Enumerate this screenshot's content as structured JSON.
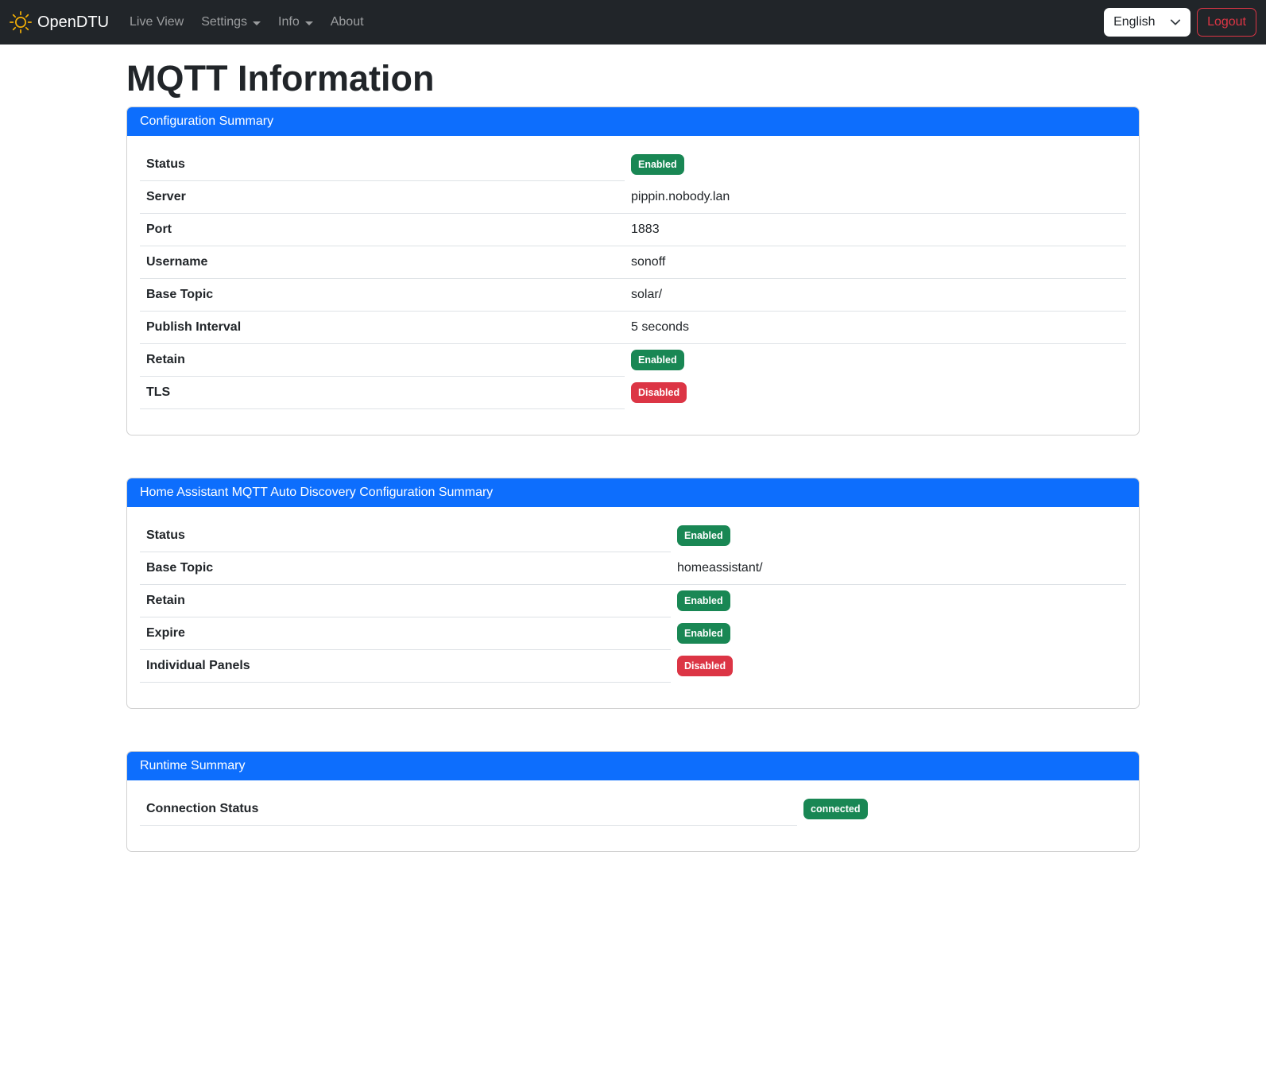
{
  "navbar": {
    "brand": "OpenDTU",
    "items": [
      {
        "label": "Live View",
        "has_dropdown": false
      },
      {
        "label": "Settings",
        "has_dropdown": true
      },
      {
        "label": "Info",
        "has_dropdown": true
      },
      {
        "label": "About",
        "has_dropdown": false
      }
    ],
    "language_selected": "English",
    "logout_label": "Logout"
  },
  "page": {
    "title": "MQTT Information"
  },
  "cards": [
    {
      "id": "configuration-summary",
      "header": "Configuration Summary",
      "label_col_width": "610px",
      "rows": [
        {
          "label": "Status",
          "type": "badge",
          "value": "Enabled",
          "variant": "success"
        },
        {
          "label": "Server",
          "type": "text",
          "value": "pippin.nobody.lan"
        },
        {
          "label": "Port",
          "type": "text",
          "value": "1883"
        },
        {
          "label": "Username",
          "type": "text",
          "value": "sonoff"
        },
        {
          "label": "Base Topic",
          "type": "text",
          "value": "solar/"
        },
        {
          "label": "Publish Interval",
          "type": "text",
          "value": "5 seconds"
        },
        {
          "label": "Retain",
          "type": "badge",
          "value": "Enabled",
          "variant": "success"
        },
        {
          "label": "TLS",
          "type": "badge",
          "value": "Disabled",
          "variant": "danger"
        }
      ]
    },
    {
      "id": "ha-mqtt-auto-discovery-configuration-summary",
      "header": "Home Assistant MQTT Auto Discovery Configuration Summary",
      "label_col_width": "668px",
      "rows": [
        {
          "label": "Status",
          "type": "badge",
          "value": "Enabled",
          "variant": "success"
        },
        {
          "label": "Base Topic",
          "type": "text",
          "value": "homeassistant/"
        },
        {
          "label": "Retain",
          "type": "badge",
          "value": "Enabled",
          "variant": "success"
        },
        {
          "label": "Expire",
          "type": "badge",
          "value": "Enabled",
          "variant": "success"
        },
        {
          "label": "Individual Panels",
          "type": "badge",
          "value": "Disabled",
          "variant": "danger"
        }
      ]
    },
    {
      "id": "runtime-summary",
      "header": "Runtime Summary",
      "label_col_width": "827px",
      "rows": [
        {
          "label": "Connection Status",
          "type": "badge",
          "value": "connected",
          "variant": "success"
        }
      ]
    }
  ],
  "colors": {
    "navbar_bg": "#212529",
    "primary_header_bg": "#0d6efd",
    "badge_success": "#198754",
    "badge_danger": "#dc3545",
    "brand_icon": "#f0ad06",
    "row_border": "#dee2e6",
    "logout_accent": "#dc3545"
  }
}
